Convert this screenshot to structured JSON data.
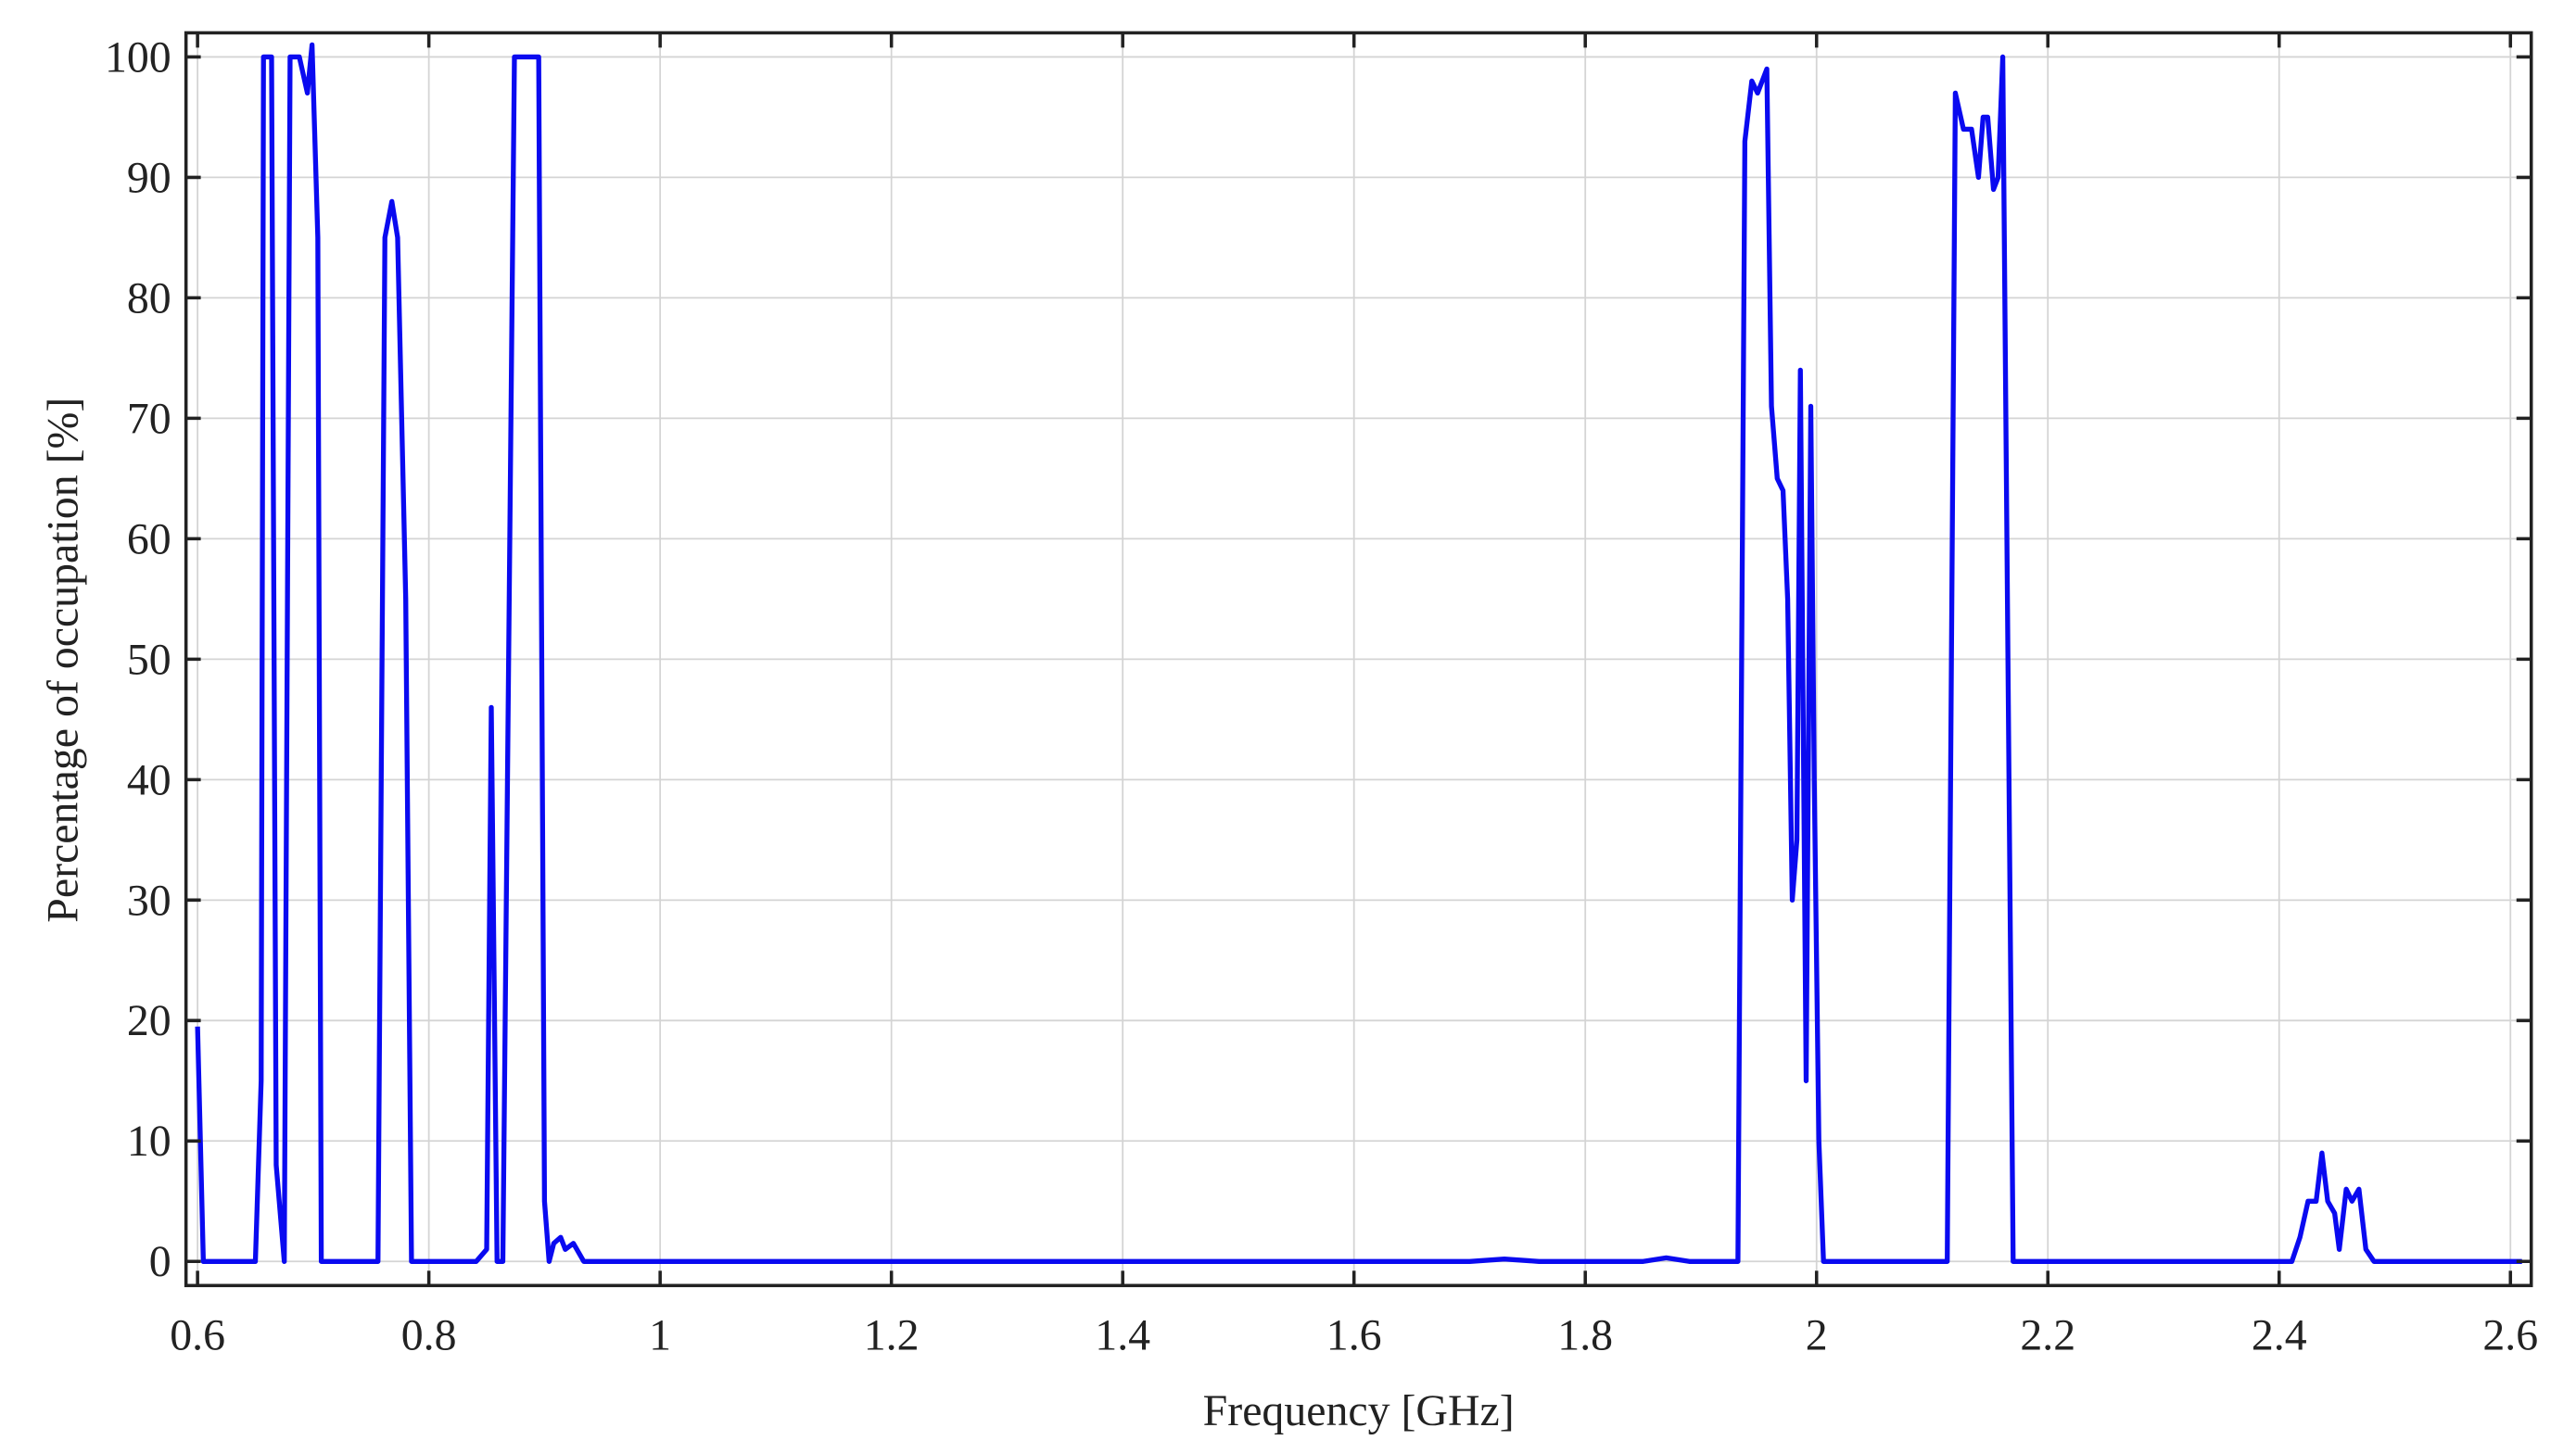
{
  "chart_data": {
    "type": "line",
    "xlabel": "Frequency [GHz]",
    "ylabel": "Percentage of occupation [%]",
    "xlim": [
      0.59,
      2.618
    ],
    "ylim": [
      -2,
      102
    ],
    "xticks": [
      0.6,
      0.8,
      1,
      1.2,
      1.4,
      1.6,
      1.8,
      2,
      2.2,
      2.4,
      2.6
    ],
    "yticks": [
      0,
      10,
      20,
      30,
      40,
      50,
      60,
      70,
      80,
      90,
      100
    ],
    "grid": true,
    "series": [
      {
        "color": "#0a0af0",
        "x": [
          0.6,
          0.605,
          0.65,
          0.655,
          0.657,
          0.664,
          0.668,
          0.675,
          0.68,
          0.688,
          0.695,
          0.699,
          0.704,
          0.707,
          0.756,
          0.762,
          0.768,
          0.773,
          0.78,
          0.785,
          0.841,
          0.85,
          0.854,
          0.859,
          0.864,
          0.874,
          0.895,
          0.9,
          0.904,
          0.908,
          0.914,
          0.918,
          0.925,
          0.934,
          1.7,
          1.73,
          1.76,
          1.85,
          1.87,
          1.89,
          1.932,
          1.938,
          1.944,
          1.949,
          1.957,
          1.961,
          1.966,
          1.971,
          1.975,
          1.979,
          1.983,
          1.986,
          1.991,
          1.995,
          1.998,
          2.002,
          2.006,
          2.113,
          2.12,
          2.127,
          2.134,
          2.14,
          2.144,
          2.148,
          2.153,
          2.157,
          2.161,
          2.17,
          2.411,
          2.418,
          2.425,
          2.432,
          2.437,
          2.442,
          2.448,
          2.452,
          2.458,
          2.463,
          2.469,
          2.475,
          2.482,
          2.61
        ],
        "values": [
          19.5,
          0,
          0,
          15,
          100,
          100,
          8,
          0,
          100,
          100,
          97,
          101,
          85,
          0,
          0,
          85,
          88,
          85,
          55,
          0,
          0,
          1,
          46,
          0,
          0,
          100,
          100,
          5,
          0,
          1.5,
          2,
          1,
          1.5,
          0,
          0,
          0.2,
          0,
          0,
          0.3,
          0,
          0,
          93,
          98,
          97,
          99,
          71,
          65,
          64,
          55,
          30,
          35,
          74,
          15,
          71,
          40,
          10,
          0,
          0,
          97,
          94,
          94,
          90,
          95,
          95,
          89,
          90,
          100,
          0,
          0,
          2,
          5,
          5,
          9,
          5,
          4,
          1,
          6,
          5,
          6,
          1,
          0,
          0
        ]
      }
    ]
  }
}
